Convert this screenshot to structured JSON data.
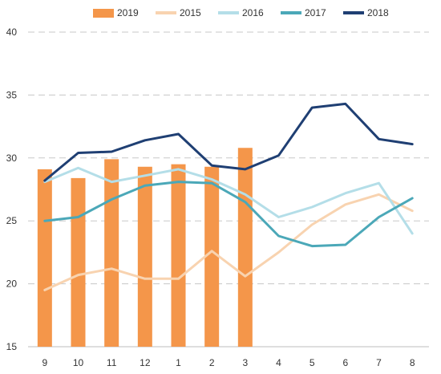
{
  "chart_data": {
    "type": "bar+line",
    "categories": [
      "9",
      "10",
      "11",
      "12",
      "1",
      "2",
      "3",
      "4",
      "5",
      "6",
      "7",
      "8"
    ],
    "ylim": [
      15,
      40
    ],
    "yticks": [
      15,
      20,
      25,
      30,
      35,
      40
    ],
    "grid": true,
    "legend_position": "top",
    "bars": {
      "name": "2019",
      "color": "#F4964A",
      "values": [
        29.1,
        28.4,
        29.9,
        29.3,
        29.5,
        29.3,
        30.8
      ]
    },
    "series": [
      {
        "name": "2015",
        "color": "#F8D3B0",
        "values": [
          19.5,
          20.7,
          21.2,
          20.4,
          20.4,
          22.6,
          20.6,
          22.5,
          24.7,
          26.3,
          27.1,
          25.8
        ]
      },
      {
        "name": "2016",
        "color": "#B4DEE8",
        "values": [
          28.1,
          29.2,
          28.1,
          28.6,
          29.1,
          28.3,
          27.1,
          25.3,
          26.1,
          27.2,
          28.0,
          24.0
        ]
      },
      {
        "name": "2017",
        "color": "#4BA8B8",
        "values": [
          25.0,
          25.3,
          26.7,
          27.8,
          28.1,
          28.0,
          26.5,
          23.8,
          23.0,
          23.1,
          25.3,
          26.8
        ]
      },
      {
        "name": "2018",
        "color": "#1F3F73",
        "values": [
          28.2,
          30.4,
          30.5,
          31.4,
          31.9,
          29.4,
          29.1,
          30.2,
          34.0,
          34.3,
          31.5,
          31.1
        ]
      }
    ]
  }
}
